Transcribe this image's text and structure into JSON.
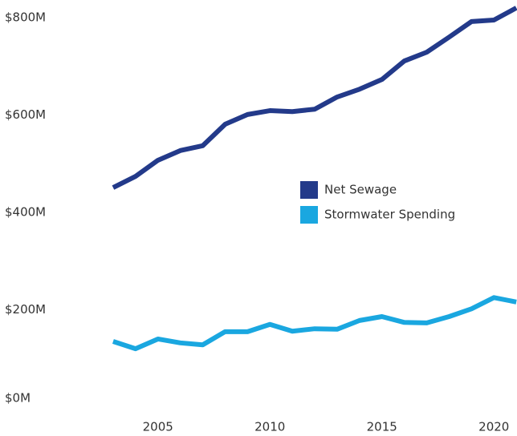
{
  "chart_data": {
    "type": "line",
    "x": [
      2003,
      2004,
      2005,
      2006,
      2007,
      2008,
      2009,
      2010,
      2011,
      2012,
      2013,
      2014,
      2015,
      2016,
      2017,
      2018,
      2019,
      2020,
      2021
    ],
    "series": [
      {
        "name": "Net Sewage",
        "color": "#233a8a",
        "values": [
          451,
          474,
          507,
          527,
          537,
          581,
          601,
          609,
          607,
          612,
          637,
          653,
          673,
          711,
          729,
          760,
          792,
          795,
          820
        ]
      },
      {
        "name": "Stormwater Spending",
        "color": "#1aa7e0",
        "values": [
          135,
          120,
          140,
          132,
          128,
          155,
          155,
          170,
          156,
          161,
          160,
          178,
          186,
          174,
          173,
          186,
          202,
          225,
          216
        ]
      }
    ],
    "xlim": [
      1997.95,
      2021.03
    ],
    "xticks": [
      2005,
      2010,
      2015,
      2020
    ],
    "ylim": [
      0,
      800
    ],
    "yticks": [
      {
        "value": 0,
        "label": "$0M"
      },
      {
        "value": 200,
        "label": "$200M"
      },
      {
        "value": 400,
        "label": "$400M"
      },
      {
        "value": 600,
        "label": "$600M"
      },
      {
        "value": 800,
        "label": "$800M"
      }
    ],
    "grid": false
  }
}
